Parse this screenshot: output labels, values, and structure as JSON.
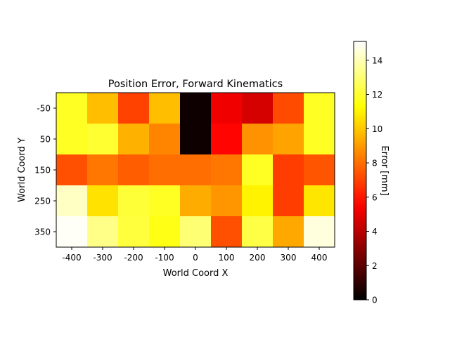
{
  "chart_data": {
    "type": "heatmap",
    "title": "Position Error, Forward Kinematics",
    "xlabel": "World Coord X",
    "ylabel": "World Coord Y",
    "x": [
      -400,
      -300,
      -200,
      -100,
      0,
      100,
      200,
      300,
      400
    ],
    "y": [
      -50,
      50,
      150,
      250,
      350
    ],
    "x_tick_labels": [
      "-400",
      "-300",
      "-200",
      "-100",
      "0",
      "100",
      "200",
      "300",
      "400"
    ],
    "y_tick_labels": [
      "-50",
      "50",
      "150",
      "250",
      "350"
    ],
    "values": [
      [
        11.8,
        9.8,
        7.0,
        9.8,
        0.3,
        5.2,
        4.6,
        7.2,
        11.8
      ],
      [
        11.8,
        12.0,
        9.5,
        8.5,
        0.3,
        5.6,
        8.8,
        9.2,
        11.8
      ],
      [
        7.3,
        8.2,
        7.6,
        8.0,
        8.0,
        8.2,
        11.8,
        6.9,
        7.4
      ],
      [
        14.2,
        10.6,
        12.1,
        11.8,
        9.4,
        8.9,
        11.0,
        6.9,
        10.7
      ],
      [
        15.0,
        13.3,
        12.2,
        11.6,
        13.0,
        7.3,
        12.3,
        9.3,
        14.6
      ]
    ],
    "colorbar": {
      "label": "Error [mm]",
      "ticks": [
        0,
        2,
        4,
        6,
        8,
        10,
        12,
        14
      ],
      "tick_labels": [
        "0",
        "2",
        "4",
        "6",
        "8",
        "10",
        "12",
        "14"
      ],
      "range": [
        0,
        15.1
      ],
      "colormap": "hot"
    }
  }
}
